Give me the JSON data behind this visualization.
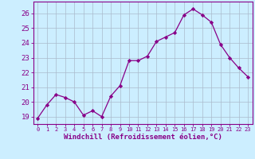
{
  "x": [
    0,
    1,
    2,
    3,
    4,
    5,
    6,
    7,
    8,
    9,
    10,
    11,
    12,
    13,
    14,
    15,
    16,
    17,
    18,
    19,
    20,
    21,
    22,
    23
  ],
  "y": [
    18.9,
    19.8,
    20.5,
    20.3,
    20.0,
    19.1,
    19.4,
    19.0,
    20.4,
    21.1,
    22.8,
    22.8,
    23.1,
    24.1,
    24.4,
    24.7,
    25.9,
    26.3,
    25.9,
    25.4,
    23.9,
    23.0,
    22.3,
    21.7
  ],
  "line_color": "#880088",
  "marker": "D",
  "marker_size": 2.2,
  "bg_color": "#cceeff",
  "grid_color": "#aabbcc",
  "xlabel": "Windchill (Refroidissement éolien,°C)",
  "xlabel_color": "#880088",
  "ylabel_ticks": [
    19,
    20,
    21,
    22,
    23,
    24,
    25,
    26
  ],
  "ylim": [
    18.5,
    26.8
  ],
  "xlim": [
    -0.5,
    23.5
  ],
  "xtick_labels": [
    "0",
    "1",
    "2",
    "3",
    "4",
    "5",
    "6",
    "7",
    "8",
    "9",
    "10",
    "11",
    "12",
    "13",
    "14",
    "15",
    "16",
    "17",
    "18",
    "19",
    "20",
    "21",
    "22",
    "23"
  ],
  "tick_color": "#880088",
  "spine_color": "#880088",
  "ytick_fontsize": 6.5,
  "xtick_fontsize": 5.0,
  "xlabel_fontsize": 6.5
}
